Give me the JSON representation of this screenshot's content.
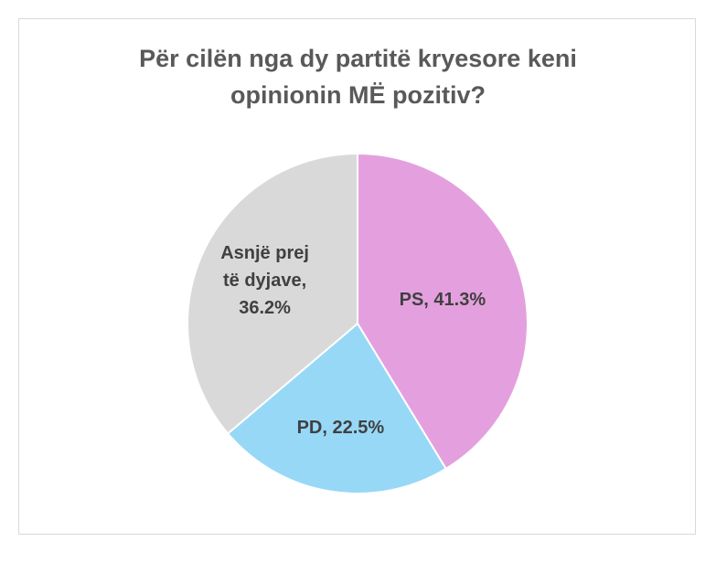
{
  "chart_data": {
    "type": "pie",
    "title_lines": [
      "Për cilën nga dy partitë kryesore keni",
      "opinionin MË pozitiv?"
    ],
    "unit": "%",
    "slices": [
      {
        "name": "PS",
        "value": 41.3,
        "color": "#e4a0de",
        "label_lines": [
          "PS, 41.3%"
        ]
      },
      {
        "name": "PD",
        "value": 22.5,
        "color": "#97d8f7",
        "label_lines": [
          "PD, 22.5%"
        ]
      },
      {
        "name": "Asnjë prej të dyjave",
        "value": 36.2,
        "color": "#d9d9d9",
        "label_lines": [
          "Asnjë prej",
          "të dyjave,",
          "36.2%"
        ]
      }
    ],
    "start_angle_deg": 0,
    "direction": "clockwise",
    "legend": "none",
    "label_position": "inside"
  }
}
